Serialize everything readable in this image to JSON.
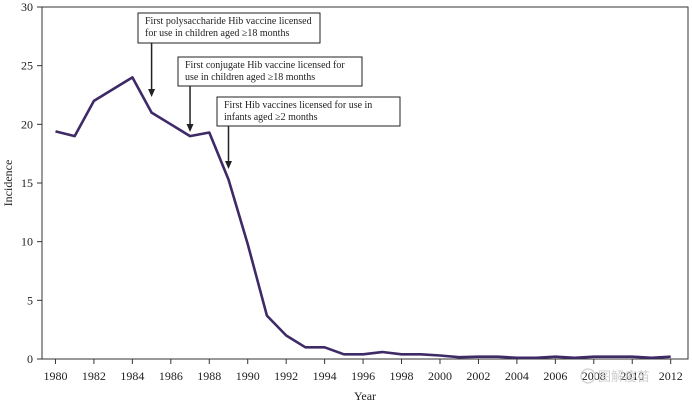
{
  "chart_data": {
    "type": "line",
    "xlabel": "Year",
    "ylabel": "Incidence",
    "xlim": [
      1979.3,
      2012.9
    ],
    "ylim": [
      0,
      30
    ],
    "x_ticks": [
      1980,
      1982,
      1984,
      1986,
      1988,
      1990,
      1992,
      1994,
      1996,
      1998,
      2000,
      2002,
      2004,
      2006,
      2008,
      2010,
      2012
    ],
    "y_ticks": [
      0,
      5,
      10,
      15,
      20,
      25,
      30
    ],
    "x_tick_labels": [
      "1980",
      "1982",
      "1984",
      "1986",
      "1988",
      "1990",
      "1992",
      "1994",
      "1996",
      "1998",
      "2000",
      "2002",
      "2004",
      "2006",
      "2008",
      "2010",
      "2012"
    ],
    "y_tick_labels": [
      "0",
      "5",
      "10",
      "15",
      "20",
      "25",
      "30"
    ],
    "grid": false,
    "line_color": "#3d2a66",
    "series": [
      {
        "x": [
          1980,
          1981,
          1982,
          1983,
          1984,
          1985,
          1986,
          1987,
          1988,
          1989,
          1990,
          1991,
          1992,
          1993,
          1994,
          1995,
          1996,
          1997,
          1998,
          1999,
          2000,
          2001,
          2002,
          2003,
          2004,
          2005,
          2006,
          2007,
          2008,
          2009,
          2010,
          2011,
          2012
        ],
        "values": [
          19.4,
          19.0,
          22.0,
          23.0,
          24.0,
          21.0,
          20.0,
          19.0,
          19.3,
          15.3,
          9.8,
          3.7,
          2.0,
          1.0,
          1.0,
          0.4,
          0.4,
          0.6,
          0.4,
          0.4,
          0.3,
          0.15,
          0.2,
          0.2,
          0.1,
          0.1,
          0.2,
          0.1,
          0.2,
          0.2,
          0.2,
          0.1,
          0.2
        ]
      }
    ],
    "annotations": [
      {
        "lines": [
          "First polysaccharide Hib vaccine licensed",
          "for use in children aged ≥18 months"
        ],
        "x": 1985
      },
      {
        "lines": [
          "First conjugate Hib vaccine licensed for",
          "use in children aged ≥18 months"
        ],
        "x": 1987
      },
      {
        "lines": [
          "First Hib vaccines licensed for use in",
          "infants aged ≥2 months"
        ],
        "x": 1989
      }
    ]
  },
  "watermark": "图解疫苗"
}
